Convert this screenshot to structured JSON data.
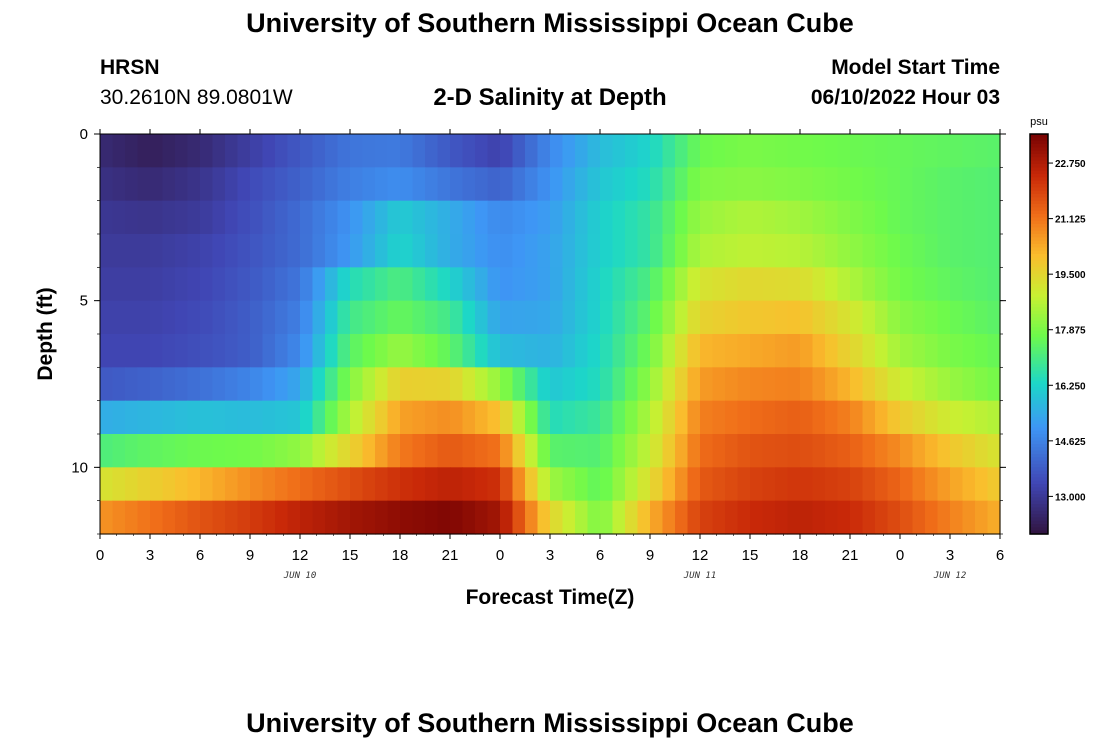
{
  "header": {
    "title": "University of Southern Mississippi Ocean Cube",
    "station": "HRSN",
    "coordinates": "30.2610N  89.0801W",
    "subtitle": "2-D Salinity at Depth",
    "start_label": "Model Start Time",
    "start_value": "06/10/2022 Hour 03"
  },
  "footer": {
    "title": "University of Southern Mississippi Ocean Cube"
  },
  "chart_data": {
    "type": "heatmap",
    "title": "2-D Salinity at Depth",
    "xlabel": "Forecast Time(Z)",
    "ylabel": "Depth (ft)",
    "x_tick_labels": [
      "0",
      "3",
      "6",
      "9",
      "12",
      "15",
      "18",
      "21",
      "0",
      "3",
      "6",
      "9",
      "12",
      "15",
      "18",
      "21",
      "0",
      "3",
      "6"
    ],
    "x_hours_range": [
      0,
      54
    ],
    "day_labels": [
      {
        "label": "JUN 10",
        "hour": 12
      },
      {
        "label": "JUN 11",
        "hour": 36
      },
      {
        "label": "JUN 12",
        "hour": 51
      }
    ],
    "y_ticks": [
      0,
      5,
      10
    ],
    "ylim": [
      0,
      12
    ],
    "colorbar": {
      "unit": "psu",
      "range": [
        11.9,
        23.6
      ],
      "tick_labels": [
        "22.750",
        "21.125",
        "19.500",
        "17.875",
        "16.250",
        "14.625",
        "13.000"
      ],
      "tick_values": [
        22.75,
        21.125,
        19.5,
        17.875,
        16.25,
        14.625,
        13.0
      ]
    },
    "depth_layers": [
      0,
      1,
      2,
      3,
      4,
      5,
      6,
      7,
      8,
      9,
      10,
      11
    ],
    "hours": [
      0,
      3,
      6,
      9,
      12,
      15,
      18,
      21,
      24,
      27,
      30,
      33,
      36,
      39,
      42,
      45,
      48,
      51,
      54
    ],
    "salinity_psu": [
      [
        12.6,
        12.3,
        12.6,
        13.2,
        13.8,
        14.4,
        14.5,
        13.8,
        13.3,
        14.8,
        15.8,
        16.3,
        17.7,
        17.9,
        17.8,
        17.7,
        17.6,
        17.5,
        17.4
      ],
      [
        12.8,
        12.6,
        12.9,
        13.5,
        14.0,
        14.6,
        14.9,
        14.4,
        14.0,
        15.0,
        16.0,
        16.5,
        18.0,
        18.1,
        18.0,
        17.8,
        17.6,
        17.4,
        17.3
      ],
      [
        13.0,
        12.9,
        13.1,
        13.6,
        14.2,
        15.0,
        16.1,
        15.5,
        14.8,
        15.2,
        16.2,
        16.8,
        18.3,
        18.6,
        18.4,
        18.0,
        17.6,
        17.4,
        17.3
      ],
      [
        13.1,
        13.1,
        13.3,
        13.7,
        14.2,
        15.1,
        16.3,
        15.5,
        14.9,
        15.3,
        16.2,
        16.8,
        18.6,
        18.8,
        18.7,
        18.2,
        17.7,
        17.4,
        17.3
      ],
      [
        13.2,
        13.2,
        13.4,
        13.8,
        14.4,
        16.5,
        17.2,
        16.3,
        15.0,
        15.3,
        16.3,
        17.2,
        19.2,
        19.5,
        19.4,
        18.6,
        17.8,
        17.5,
        17.3
      ],
      [
        13.3,
        13.3,
        13.5,
        13.9,
        14.6,
        17.0,
        17.6,
        17.0,
        15.3,
        15.4,
        16.3,
        17.5,
        19.6,
        19.9,
        20.0,
        19.2,
        18.1,
        17.7,
        17.4
      ],
      [
        13.4,
        13.4,
        13.6,
        13.9,
        14.8,
        17.4,
        18.3,
        17.5,
        15.8,
        15.6,
        16.4,
        17.8,
        20.2,
        20.4,
        20.6,
        19.6,
        18.4,
        17.9,
        17.6
      ],
      [
        13.8,
        14.0,
        14.3,
        14.7,
        15.4,
        18.0,
        19.7,
        19.6,
        18.2,
        16.0,
        16.5,
        18.2,
        20.6,
        20.9,
        21.0,
        20.2,
        19.0,
        18.3,
        17.8
      ],
      [
        15.5,
        15.7,
        15.9,
        15.8,
        16.0,
        18.6,
        20.5,
        20.8,
        20.0,
        16.5,
        16.9,
        18.6,
        21.0,
        21.3,
        21.5,
        21.0,
        19.8,
        19.0,
        18.6
      ],
      [
        17.2,
        17.5,
        17.7,
        17.8,
        18.2,
        19.6,
        21.1,
        21.6,
        21.2,
        17.4,
        17.3,
        18.9,
        21.3,
        21.7,
        21.8,
        21.5,
        20.8,
        19.9,
        19.2
      ],
      [
        19.2,
        19.7,
        20.2,
        20.8,
        21.3,
        21.8,
        22.3,
        22.6,
        22.3,
        18.4,
        17.5,
        19.4,
        21.6,
        22.0,
        22.2,
        22.0,
        21.4,
        20.5,
        19.8
      ],
      [
        20.7,
        21.2,
        21.7,
        22.1,
        22.6,
        23.0,
        23.3,
        23.5,
        23.0,
        19.6,
        17.9,
        20.3,
        22.0,
        22.4,
        22.6,
        22.4,
        21.8,
        21.0,
        20.3
      ]
    ]
  }
}
